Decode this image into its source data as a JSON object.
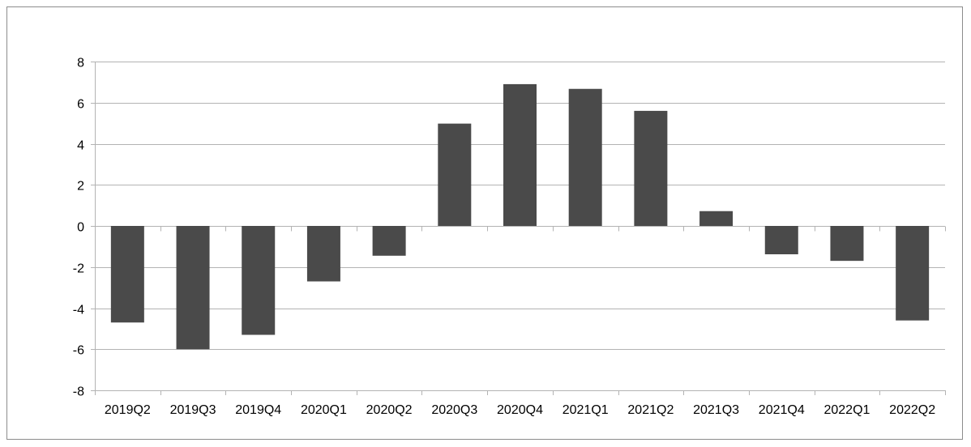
{
  "chart_data": {
    "type": "bar",
    "title": "",
    "xlabel": "",
    "ylabel": "",
    "categories": [
      "2019Q2",
      "2019Q3",
      "2019Q4",
      "2020Q1",
      "2020Q2",
      "2020Q3",
      "2020Q4",
      "2021Q1",
      "2021Q2",
      "2021Q3",
      "2021Q4",
      "2022Q1",
      "2022Q2"
    ],
    "values": [
      -4.7,
      -6.0,
      -5.3,
      -2.7,
      -1.45,
      4.98,
      6.9,
      6.67,
      5.6,
      0.72,
      -1.38,
      -1.7,
      -4.6
    ],
    "ylim": [
      -8,
      8
    ],
    "yticks": [
      -8,
      -6,
      -4,
      -2,
      0,
      2,
      4,
      6,
      8
    ],
    "grid": true,
    "legend": "none",
    "colors": {
      "bar": "#4a4a4a",
      "grid": "#b3b3b3",
      "axis": "#b3b3b3"
    }
  }
}
